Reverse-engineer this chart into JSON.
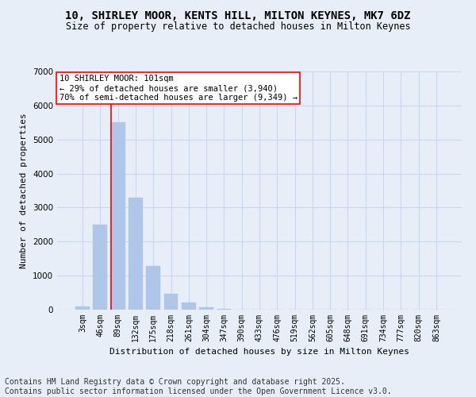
{
  "title": "10, SHIRLEY MOOR, KENTS HILL, MILTON KEYNES, MK7 6DZ",
  "subtitle": "Size of property relative to detached houses in Milton Keynes",
  "xlabel": "Distribution of detached houses by size in Milton Keynes",
  "ylabel": "Number of detached properties",
  "categories": [
    "3sqm",
    "46sqm",
    "89sqm",
    "132sqm",
    "175sqm",
    "218sqm",
    "261sqm",
    "304sqm",
    "347sqm",
    "390sqm",
    "433sqm",
    "476sqm",
    "519sqm",
    "562sqm",
    "605sqm",
    "648sqm",
    "691sqm",
    "734sqm",
    "777sqm",
    "820sqm",
    "863sqm"
  ],
  "values": [
    100,
    2500,
    5500,
    3300,
    1280,
    470,
    220,
    80,
    20,
    0,
    0,
    0,
    0,
    0,
    0,
    0,
    0,
    0,
    0,
    0,
    0
  ],
  "bar_color": "#aec6e8",
  "bar_edgecolor": "#aec6e8",
  "grid_color": "#c8d8ee",
  "background_color": "#e8eef8",
  "vline_index": 2,
  "vline_color": "red",
  "annotation_title": "10 SHIRLEY MOOR: 101sqm",
  "annotation_line1": "← 29% of detached houses are smaller (3,940)",
  "annotation_line2": "70% of semi-detached houses are larger (9,349) →",
  "annotation_box_color": "white",
  "annotation_box_edgecolor": "red",
  "ylim": [
    0,
    7000
  ],
  "yticks": [
    0,
    1000,
    2000,
    3000,
    4000,
    5000,
    6000,
    7000
  ],
  "footer_line1": "Contains HM Land Registry data © Crown copyright and database right 2025.",
  "footer_line2": "Contains public sector information licensed under the Open Government Licence v3.0.",
  "title_fontsize": 10,
  "subtitle_fontsize": 8.5,
  "axis_label_fontsize": 8,
  "tick_fontsize": 7,
  "annotation_fontsize": 7.5,
  "footer_fontsize": 7
}
